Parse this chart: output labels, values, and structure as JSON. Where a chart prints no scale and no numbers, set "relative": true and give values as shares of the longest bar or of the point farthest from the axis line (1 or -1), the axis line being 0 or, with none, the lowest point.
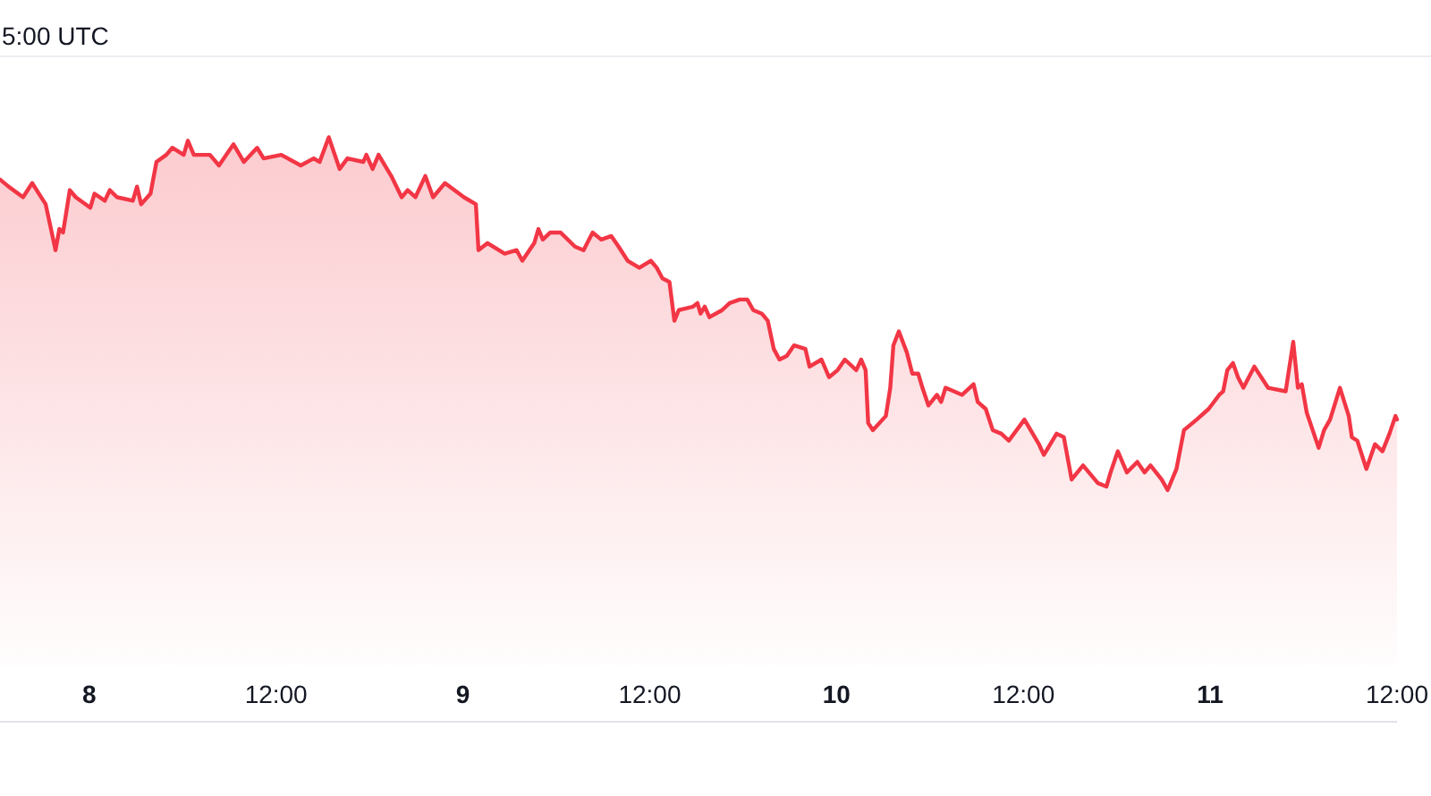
{
  "chart_data": {
    "type": "area",
    "relative": true,
    "color": "#f23645",
    "annotations": [
      "5:00 UTC"
    ],
    "xlim": [
      "--11-07T18:16",
      "--11-11T12:00"
    ],
    "xticks": [
      {
        "value": "--11-08",
        "label": "8"
      },
      {
        "value": "--11-08T12:00",
        "label": "12:00"
      },
      {
        "value": "--11-09",
        "label": "9"
      },
      {
        "value": "--11-09T12:00",
        "label": "12:00"
      },
      {
        "value": "--11-10",
        "label": "10"
      },
      {
        "value": "--11-10T12:00",
        "label": "12:00"
      },
      {
        "value": "--11-11",
        "label": "11"
      },
      {
        "value": "--11-11T12:00",
        "label": "12:00"
      }
    ],
    "x": [
      "--11-07T18:16",
      "--11-07T18:49",
      "--11-07T19:45",
      "--11-07T20:20",
      "--11-07T21:12",
      "--11-07T21:50",
      "--11-07T22:05",
      "--11-07T22:19",
      "--11-07T22:45",
      "--11-07T23:08",
      "--11-08T00:04",
      "--11-08T00:20",
      "--11-08T01:00",
      "--11-08T01:19",
      "--11-08T01:47",
      "--11-08T02:48",
      "--11-08T03:04",
      "--11-08T03:20",
      "--11-08T03:56",
      "--11-08T04:19",
      "--11-08T04:57",
      "--11-08T05:20",
      "--11-08T06:04",
      "--11-08T06:20",
      "--11-08T06:43",
      "--11-08T07:45",
      "--11-08T08:20",
      "--11-08T09:16",
      "--11-08T09:56",
      "--11-08T10:47",
      "--11-08T11:12",
      "--11-08T12:20",
      "--11-08T13:35",
      "--11-08T14:25",
      "--11-08T14:48",
      "--11-08T15:23",
      "--11-08T16:05",
      "--11-08T16:35",
      "--11-08T17:36",
      "--11-08T17:48",
      "--11-08T18:12",
      "--11-08T18:35",
      "--11-08T19:24",
      "--11-08T20:04",
      "--11-08T20:27",
      "--11-08T20:57",
      "--11-08T21:35",
      "--11-08T22:05",
      "--11-08T22:51",
      "--11-09T00:04",
      "--11-09T00:50",
      "--11-09T01:00",
      "--11-09T01:35",
      "--11-09T02:41",
      "--11-09T03:27",
      "--11-09T03:49",
      "--11-09T04:35",
      "--11-09T04:51",
      "--11-09T05:08",
      "--11-09T05:37",
      "--11-09T06:16",
      "--11-09T07:12",
      "--11-09T07:45",
      "--11-09T08:20",
      "--11-09T08:53",
      "--11-09T09:32",
      "--11-09T10:00",
      "--11-09T10:35",
      "--11-09T11:20",
      "--11-09T12:04",
      "--11-09T12:27",
      "--11-09T12:49",
      "--11-09T13:16",
      "--11-09T13:35",
      "--11-09T13:52",
      "--11-09T14:47",
      "--11-09T15:04",
      "--11-09T15:16",
      "--11-09T15:32",
      "--11-09T15:50",
      "--11-09T16:39",
      "--11-09T17:08",
      "--11-09T17:47",
      "--11-09T18:16",
      "--11-09T18:39",
      "--11-09T19:12",
      "--11-09T19:35",
      "--11-09T19:58",
      "--11-09T20:20",
      "--11-09T20:48",
      "--11-09T21:16",
      "--11-09T22:00",
      "--11-09T22:16",
      "--11-09T23:02",
      "--11-09T23:31",
      "--11-10T00:04",
      "--11-10T00:32",
      "--11-10T01:16",
      "--11-10T01:35",
      "--11-10T01:52",
      "--11-10T02:02",
      "--11-10T02:20",
      "--11-10T03:10",
      "--11-10T03:27",
      "--11-10T03:39",
      "--11-10T04:00",
      "--11-10T04:31",
      "--11-10T04:52",
      "--11-10T05:15",
      "--11-10T05:31",
      "--11-10T05:54",
      "--11-10T06:27",
      "--11-10T06:43",
      "--11-10T07:00",
      "--11-10T08:04",
      "--11-10T08:48",
      "--11-10T09:04",
      "--11-10T09:35",
      "--11-10T10:02",
      "--11-10T10:35",
      "--11-10T11:04",
      "--11-10T12:04",
      "--11-10T13:00",
      "--11-10T13:19",
      "--11-10T14:08",
      "--11-10T14:36",
      "--11-10T15:06",
      "--11-10T15:50",
      "--11-10T16:47",
      "--11-10T17:20",
      "--11-10T17:36",
      "--11-10T18:04",
      "--11-10T18:39",
      "--11-10T19:19",
      "--11-10T19:47",
      "--11-10T20:10",
      "--11-10T20:53",
      "--11-10T21:16",
      "--11-10T21:50",
      "--11-10T22:19",
      "--11-10T23:08",
      "--11-10T23:54",
      "--11-11T00:35",
      "--11-11T00:50",
      "--11-11T01:06",
      "--11-11T01:28",
      "--11-11T01:47",
      "--11-11T02:08",
      "--11-11T02:50",
      "--11-11T03:43",
      "--11-11T04:51",
      "--11-11T05:20",
      "--11-11T05:38",
      "--11-11T05:53",
      "--11-11T06:12",
      "--11-11T06:58",
      "--11-11T07:19",
      "--11-11T07:42",
      "--11-11T08:20",
      "--11-11T08:54",
      "--11-11T09:06",
      "--11-11T09:27",
      "--11-11T10:02",
      "--11-11T10:35",
      "--11-11T11:04",
      "--11-11T11:31",
      "--11-11T11:54",
      "--11-11T12:00"
    ],
    "values": [
      0.88,
      0.86,
      0.83,
      0.87,
      0.81,
      0.68,
      0.74,
      0.73,
      0.85,
      0.83,
      0.8,
      0.84,
      0.82,
      0.85,
      0.83,
      0.82,
      0.86,
      0.81,
      0.84,
      0.93,
      0.95,
      0.97,
      0.95,
      0.99,
      0.95,
      0.95,
      0.92,
      0.98,
      0.93,
      0.97,
      0.94,
      0.95,
      0.92,
      0.94,
      0.93,
      1,
      0.91,
      0.94,
      0.93,
      0.95,
      0.91,
      0.95,
      0.89,
      0.83,
      0.85,
      0.83,
      0.89,
      0.83,
      0.87,
      0.83,
      0.81,
      0.68,
      0.7,
      0.67,
      0.68,
      0.65,
      0.7,
      0.74,
      0.71,
      0.73,
      0.73,
      0.69,
      0.68,
      0.73,
      0.71,
      0.72,
      0.69,
      0.65,
      0.63,
      0.65,
      0.63,
      0.6,
      0.59,
      0.48,
      0.51,
      0.52,
      0.53,
      0.5,
      0.52,
      0.49,
      0.51,
      0.53,
      0.54,
      0.54,
      0.51,
      0.5,
      0.48,
      0.4,
      0.37,
      0.38,
      0.41,
      0.4,
      0.35,
      0.37,
      0.32,
      0.34,
      0.37,
      0.34,
      0.37,
      0.34,
      0.19,
      0.17,
      0.21,
      0.29,
      0.41,
      0.45,
      0.39,
      0.33,
      0.33,
      0.29,
      0.24,
      0.27,
      0.25,
      0.29,
      0.27,
      0.3,
      0.25,
      0.23,
      0.17,
      0.16,
      0.14,
      0.2,
      0.13,
      0.1,
      0.16,
      0.15,
      0.03,
      0.07,
      0.02,
      0.01,
      0.05,
      0.11,
      0.05,
      0.08,
      0.05,
      0.07,
      0.03,
      0,
      0.06,
      0.17,
      0.2,
      0.23,
      0.27,
      0.28,
      0.34,
      0.36,
      0.32,
      0.29,
      0.35,
      0.29,
      0.28,
      0.42,
      0.29,
      0.3,
      0.22,
      0.12,
      0.17,
      0.2,
      0.29,
      0.21,
      0.15,
      0.14,
      0.06,
      0.13,
      0.11,
      0.16,
      0.21,
      0.2
    ]
  }
}
